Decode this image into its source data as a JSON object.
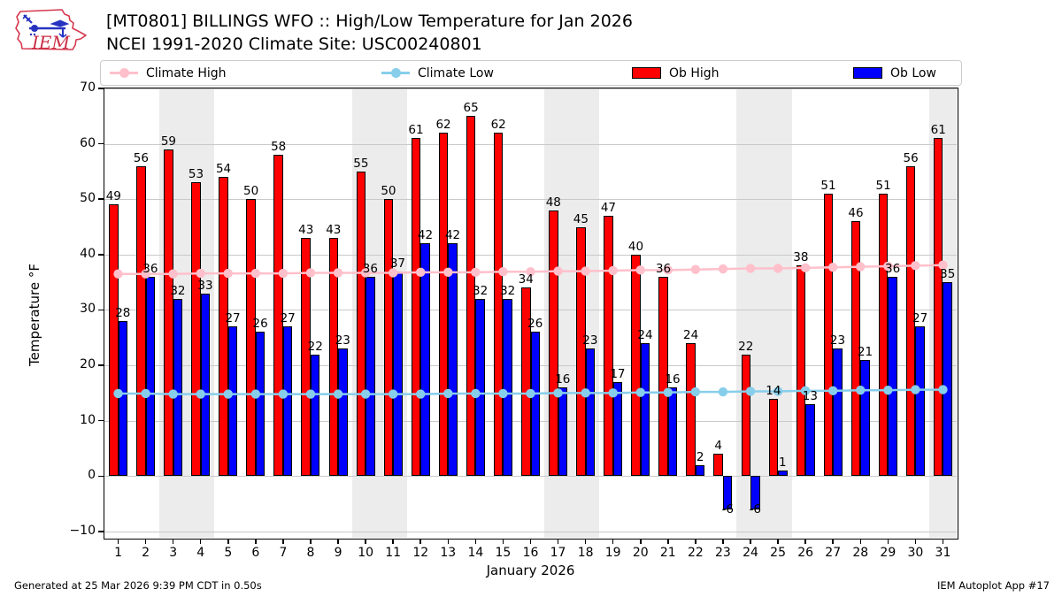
{
  "header": {
    "title_line1": "[MT0801] BILLINGS WFO :: High/Low Temperature for Jan 2026",
    "title_line2": "NCEI 1991-2020 Climate Site: USC00240801",
    "logo_text": "IEM"
  },
  "logo_colors": {
    "red": "#d6394f",
    "blue": "#2633c0"
  },
  "legend": [
    {
      "label": "Climate High",
      "type": "line",
      "color": "#ffc0cb"
    },
    {
      "label": "Climate Low",
      "type": "line",
      "color": "#87ceeb"
    },
    {
      "label": "Ob High",
      "type": "rect",
      "color": "#ff0000"
    },
    {
      "label": "Ob Low",
      "type": "rect",
      "color": "#0000ff"
    }
  ],
  "chart_data": {
    "type": "bar",
    "title": "[MT0801] BILLINGS WFO :: High/Low Temperature for Jan 2026",
    "subtitle": "NCEI 1991-2020 Climate Site: USC00240801",
    "x": [
      1,
      2,
      3,
      4,
      5,
      6,
      7,
      8,
      9,
      10,
      11,
      12,
      13,
      14,
      15,
      16,
      17,
      18,
      19,
      20,
      21,
      22,
      23,
      24,
      25,
      26,
      27,
      28,
      29,
      30,
      31
    ],
    "series": [
      {
        "name": "Ob High",
        "type": "bar",
        "color": "#ff0000",
        "values": [
          49,
          56,
          59,
          53,
          54,
          50,
          58,
          43,
          43,
          55,
          50,
          61,
          62,
          65,
          62,
          34,
          48,
          45,
          47,
          40,
          36,
          24,
          4,
          22,
          14,
          38,
          51,
          46,
          51,
          56,
          61
        ]
      },
      {
        "name": "Ob Low",
        "type": "bar",
        "color": "#0000ff",
        "values": [
          28,
          36,
          32,
          33,
          27,
          26,
          27,
          22,
          23,
          36,
          37,
          42,
          42,
          32,
          32,
          26,
          16,
          23,
          17,
          24,
          16,
          2,
          -6,
          -6,
          1,
          13,
          23,
          21,
          36,
          27,
          35
        ]
      },
      {
        "name": "Climate High",
        "type": "line",
        "color": "#ffc0cb",
        "values": [
          36.5,
          36.5,
          36.5,
          36.6,
          36.6,
          36.6,
          36.6,
          36.7,
          36.7,
          36.7,
          36.7,
          36.8,
          36.8,
          36.8,
          36.9,
          36.9,
          37.0,
          37.0,
          37.1,
          37.2,
          37.2,
          37.3,
          37.4,
          37.5,
          37.5,
          37.6,
          37.7,
          37.8,
          37.9,
          38.0,
          38.1
        ]
      },
      {
        "name": "Climate Low",
        "type": "line",
        "color": "#87ceeb",
        "values": [
          14.9,
          14.9,
          14.8,
          14.8,
          14.8,
          14.8,
          14.8,
          14.8,
          14.8,
          14.8,
          14.8,
          14.8,
          14.9,
          14.9,
          14.9,
          14.9,
          15.0,
          15.0,
          15.0,
          15.1,
          15.1,
          15.2,
          15.2,
          15.3,
          15.3,
          15.4,
          15.4,
          15.5,
          15.5,
          15.6,
          15.6
        ]
      }
    ],
    "ylabel": "Temperature °F",
    "xlabel": "January 2026",
    "ylim": [
      -11.14,
      70
    ],
    "yticks": [
      -10,
      0,
      10,
      20,
      30,
      40,
      50,
      60,
      70
    ],
    "grid": "horizontal",
    "weekend_bands": [
      [
        3,
        4
      ],
      [
        10,
        11
      ],
      [
        17,
        18
      ],
      [
        24,
        25
      ],
      [
        31,
        31
      ]
    ],
    "legend_position": "top"
  },
  "footer": {
    "left": "Generated at 25 Mar 2026 9:39 PM CDT in 0.50s",
    "right": "IEM Autoplot App #17"
  }
}
